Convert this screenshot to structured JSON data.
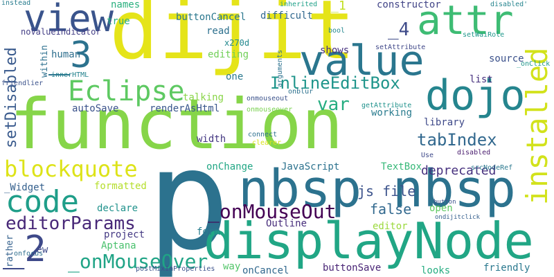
{
  "background": "#ffffff",
  "words": [
    {
      "text": "p",
      "color": "#2c728e"
    },
    {
      "text": "function",
      "color": "#86d549"
    },
    {
      "text": "dijit",
      "color": "#e5e419"
    },
    {
      "text": "nbsp nbsp",
      "color": "#2c728e"
    },
    {
      "text": "displayNode",
      "color": "#21a685"
    },
    {
      "text": "value",
      "color": "#2a768e"
    },
    {
      "text": "attr",
      "color": "#3ebc74"
    },
    {
      "text": "dojo",
      "color": "#25858e"
    },
    {
      "text": "view",
      "color": "#3a548c"
    },
    {
      "text": "Eclipse",
      "color": "#5ec962"
    },
    {
      "text": "_3",
      "color": "#2c728e"
    },
    {
      "text": "code",
      "color": "#1f9e89"
    },
    {
      "text": "_2",
      "color": "#3e4989"
    },
    {
      "text": "installed",
      "color": "#d2e21b"
    },
    {
      "text": "blockquote",
      "color": "#dde318"
    },
    {
      "text": "editorParams",
      "color": "#482878"
    },
    {
      "text": "_onMouseOut",
      "color": "#440154"
    },
    {
      "text": "_onMouseOver",
      "color": "#20a486"
    },
    {
      "text": "InlineEditBox",
      "color": "#1f958b"
    },
    {
      "text": "tabIndex",
      "color": "#31688e"
    },
    {
      "text": "deprecated",
      "color": "#46307e"
    },
    {
      "text": "setDisabled",
      "color": "#38598c"
    },
    {
      "text": "js file",
      "color": "#3b528b"
    },
    {
      "text": "false",
      "color": "#31688e"
    },
    {
      "text": "var",
      "color": "#26ad81"
    },
    {
      "text": "_4",
      "color": "#3e4a89"
    },
    {
      "text": "_1",
      "color": "#c2df23"
    },
    {
      "text": "renderAsHtml",
      "color": "#39568c"
    },
    {
      "text": "autoSave",
      "color": "#3b528b"
    },
    {
      "text": "buttonCancel",
      "color": "#2a778e"
    },
    {
      "text": "difficult",
      "color": "#31688e"
    },
    {
      "text": "names",
      "color": "#2ab07f"
    },
    {
      "text": "true",
      "color": "#27ad81"
    },
    {
      "text": "read",
      "color": "#2d708e"
    },
    {
      "text": "noValueIndicator",
      "color": "#433e85"
    },
    {
      "text": "human",
      "color": "#2e6f8e"
    },
    {
      "text": "editing",
      "color": "#70cf57"
    },
    {
      "text": "x270d",
      "color": "#23898e"
    },
    {
      "text": "shows",
      "color": "#46307e"
    },
    {
      "text": "source",
      "color": "#3b518b"
    },
    {
      "text": "constructor",
      "color": "#414487"
    },
    {
      "text": "one",
      "color": "#2a788e"
    },
    {
      "text": "talking",
      "color": "#89d548"
    },
    {
      "text": "list",
      "color": "#46307e"
    },
    {
      "text": "working",
      "color": "#297b8e"
    },
    {
      "text": "library",
      "color": "#3e4989"
    },
    {
      "text": "width",
      "color": "#453882"
    },
    {
      "text": "onChange",
      "color": "#22a785"
    },
    {
      "text": "JavaScript",
      "color": "#2c728e"
    },
    {
      "text": "TextBox",
      "color": "#37b878"
    },
    {
      "text": "_Widget",
      "color": "#35608d"
    },
    {
      "text": "formatted",
      "color": "#b5de2b"
    },
    {
      "text": "declare",
      "color": "#20928c"
    },
    {
      "text": "Outline",
      "color": "#472d7b"
    },
    {
      "text": "open",
      "color": "#5ec962"
    },
    {
      "text": "editor",
      "color": "#9bd93c"
    },
    {
      "text": "form",
      "color": "#287d8e"
    },
    {
      "text": "project",
      "color": "#443983"
    },
    {
      "text": "Aptana",
      "color": "#4ac16d"
    },
    {
      "text": "_ew",
      "color": "#3e4989"
    },
    {
      "text": "onCancel",
      "color": "#31688e"
    },
    {
      "text": "buttonSave",
      "color": "#482475"
    },
    {
      "text": "looks",
      "color": "#26ad81"
    },
    {
      "text": "friendly",
      "color": "#2a788e"
    },
    {
      "text": "way",
      "color": "#52c569"
    },
    {
      "text": "rather",
      "color": "#34618d"
    },
    {
      "text": "within",
      "color": "#2d708e"
    },
    {
      "text": "instead",
      "color": "#287c8e"
    },
    {
      "text": "friendlier",
      "color": "#3b528b"
    },
    {
      "text": "innerHTML",
      "color": "#25838e"
    },
    {
      "text": "inherited",
      "color": "#1fa088"
    },
    {
      "text": "disabled'",
      "color": "#25848e"
    },
    {
      "text": "bool",
      "color": "#24878e"
    },
    {
      "text": "setWaiRole",
      "color": "#1f978b"
    },
    {
      "text": "setAttribute",
      "color": "#3f4788"
    },
    {
      "text": "_onClick",
      "color": "#1f968b"
    },
    {
      "text": "arguments",
      "color": "#2c718e"
    },
    {
      "text": "onblur",
      "color": "#2c718e"
    },
    {
      "text": "getAttribute",
      "color": "#20928c"
    },
    {
      "text": "onmouseout",
      "color": "#3b528b"
    },
    {
      "text": "onmouseover",
      "color": "#7ad151"
    },
    {
      "text": "connect",
      "color": "#2d708e"
    },
    {
      "text": "clearer",
      "color": "#d8e219"
    },
    {
      "text": "Use",
      "color": "#3e4989"
    },
    {
      "text": "disabled",
      "color": "#481b6d"
    },
    {
      "text": "srcNodeRef",
      "color": "#2a788e"
    },
    {
      "text": "button",
      "color": "#3b528b"
    },
    {
      "text": "ondijitclick",
      "color": "#355f8d"
    },
    {
      "text": "onfocus",
      "color": "#2e6e8e"
    },
    {
      "text": "postMixInProperties",
      "color": "#3b518b"
    }
  ]
}
